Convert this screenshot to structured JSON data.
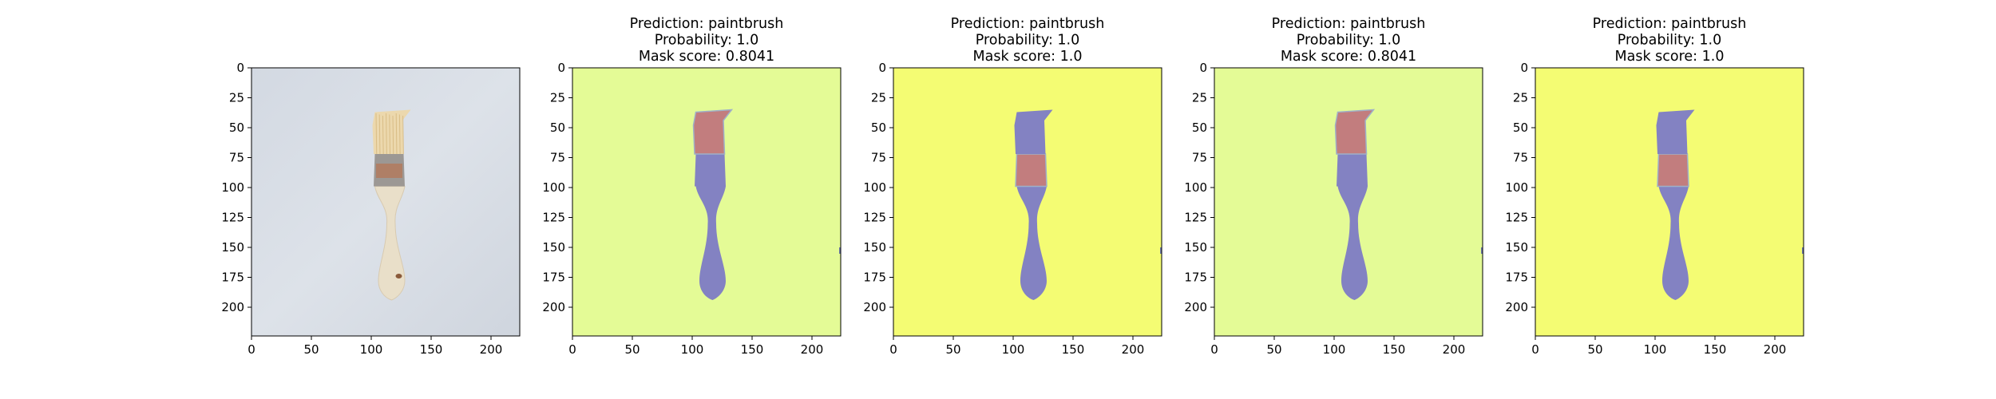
{
  "chart_data": [
    {
      "type": "image",
      "panel": "input-photo",
      "title_lines": [],
      "background": "#dde2e9",
      "xlim": [
        0,
        224
      ],
      "ylim": [
        224,
        0
      ],
      "xticks": [
        0,
        50,
        100,
        150,
        200
      ],
      "yticks": [
        0,
        25,
        50,
        75,
        100,
        125,
        150,
        175,
        200
      ],
      "grid": false
    },
    {
      "type": "image",
      "panel": "mask-overlay",
      "title_lines": [
        "Prediction: paintbrush",
        "Probability: 1.0",
        "Mask score: 0.8041"
      ],
      "prediction": "paintbrush",
      "probability": "1.0",
      "mask_score": "0.8041",
      "background": "#e4fb96",
      "brush_color": "#8382c2",
      "highlight_region": "bristles",
      "highlight_color": "#c27d7e",
      "xlim": [
        0,
        224
      ],
      "ylim": [
        224,
        0
      ],
      "xticks": [
        0,
        50,
        100,
        150,
        200
      ],
      "yticks": [
        0,
        25,
        50,
        75,
        100,
        125,
        150,
        175,
        200
      ],
      "grid": false
    },
    {
      "type": "image",
      "panel": "mask-overlay",
      "title_lines": [
        "Prediction: paintbrush",
        "Probability: 1.0",
        "Mask score: 1.0"
      ],
      "prediction": "paintbrush",
      "probability": "1.0",
      "mask_score": "1.0",
      "background": "#f4fc73",
      "brush_color": "#8382c2",
      "highlight_region": "ferrule",
      "highlight_color": "#c27d7e",
      "xlim": [
        0,
        224
      ],
      "ylim": [
        224,
        0
      ],
      "xticks": [
        0,
        50,
        100,
        150,
        200
      ],
      "yticks": [
        0,
        25,
        50,
        75,
        100,
        125,
        150,
        175,
        200
      ],
      "grid": false
    },
    {
      "type": "image",
      "panel": "mask-overlay",
      "title_lines": [
        "Prediction: paintbrush",
        "Probability: 1.0",
        "Mask score: 0.8041"
      ],
      "prediction": "paintbrush",
      "probability": "1.0",
      "mask_score": "0.8041",
      "background": "#e4fb96",
      "brush_color": "#8382c2",
      "highlight_region": "bristles",
      "highlight_color": "#c27d7e",
      "xlim": [
        0,
        224
      ],
      "ylim": [
        224,
        0
      ],
      "xticks": [
        0,
        50,
        100,
        150,
        200
      ],
      "yticks": [
        0,
        25,
        50,
        75,
        100,
        125,
        150,
        175,
        200
      ],
      "grid": false
    },
    {
      "type": "image",
      "panel": "mask-overlay",
      "title_lines": [
        "Prediction: paintbrush",
        "Probability: 1.0",
        "Mask score: 1.0"
      ],
      "prediction": "paintbrush",
      "probability": "1.0",
      "mask_score": "1.0",
      "background": "#f4fc73",
      "brush_color": "#8382c2",
      "highlight_region": "ferrule",
      "highlight_color": "#c27d7e",
      "xlim": [
        0,
        224
      ],
      "ylim": [
        224,
        0
      ],
      "xticks": [
        0,
        50,
        100,
        150,
        200
      ],
      "yticks": [
        0,
        25,
        50,
        75,
        100,
        125,
        150,
        175,
        200
      ],
      "grid": false
    }
  ]
}
